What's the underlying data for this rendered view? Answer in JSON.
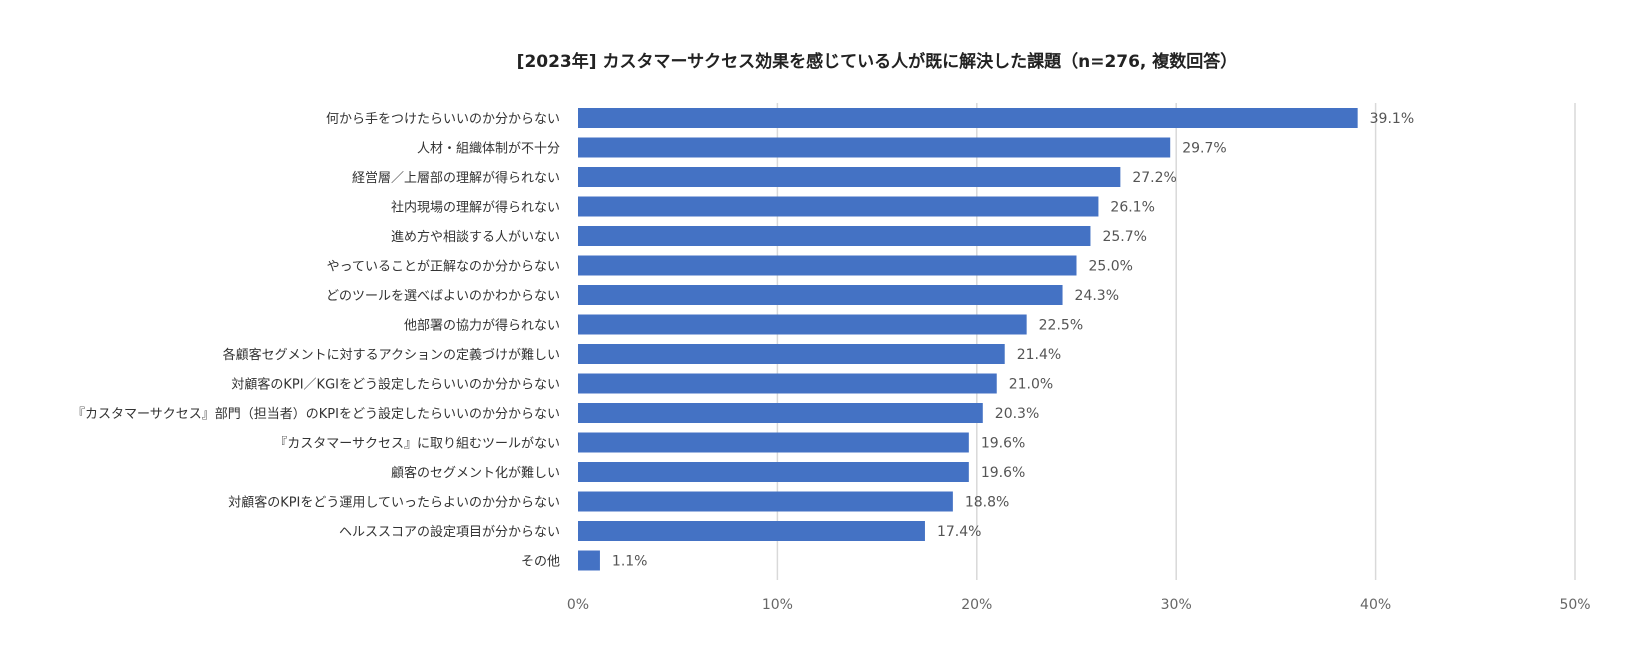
{
  "chart_data": {
    "type": "bar",
    "orientation": "horizontal",
    "title": "[2023年] カスタマーサクセス効果を感じている人が既に解決した課題（n=276, 複数回答）",
    "categories": [
      "何から手をつけたらいいのか分からない",
      "人材・組織体制が不十分",
      "経営層／上層部の理解が得られない",
      "社内現場の理解が得られない",
      "進め方や相談する人がいない",
      "やっていることが正解なのか分からない",
      "どのツールを選べばよいのかわからない",
      "他部署の協力が得られない",
      "各顧客セグメントに対するアクションの定義づけが難しい",
      "対顧客のKPI／KGIをどう設定したらいいのか分からない",
      "『カスタマーサクセス』部門（担当者）のKPIをどう設定したらいいのか分からない",
      "『カスタマーサクセス』に取り組むツールがない",
      "顧客のセグメント化が難しい",
      "対顧客のKPIをどう運用していったらよいのか分からない",
      "ヘルススコアの設定項目が分からない",
      "その他"
    ],
    "values": [
      39.1,
      29.7,
      27.2,
      26.1,
      25.7,
      25.0,
      24.3,
      22.5,
      21.4,
      21.0,
      20.3,
      19.6,
      19.6,
      18.8,
      17.4,
      1.1
    ],
    "value_labels": [
      "39.1%",
      "29.7%",
      "27.2%",
      "26.1%",
      "25.7%",
      "25.0%",
      "24.3%",
      "22.5%",
      "21.4%",
      "21.0%",
      "20.3%",
      "19.6%",
      "19.6%",
      "18.8%",
      "17.4%",
      "1.1%"
    ],
    "xlim": [
      0,
      50
    ],
    "x_ticks": [
      0,
      10,
      20,
      30,
      40,
      50
    ],
    "x_tick_labels": [
      "0%",
      "10%",
      "20%",
      "30%",
      "40%",
      "50%"
    ],
    "xlabel": "",
    "ylabel": "",
    "grid": true,
    "legend": "none",
    "bar_color": "#4472c4"
  }
}
